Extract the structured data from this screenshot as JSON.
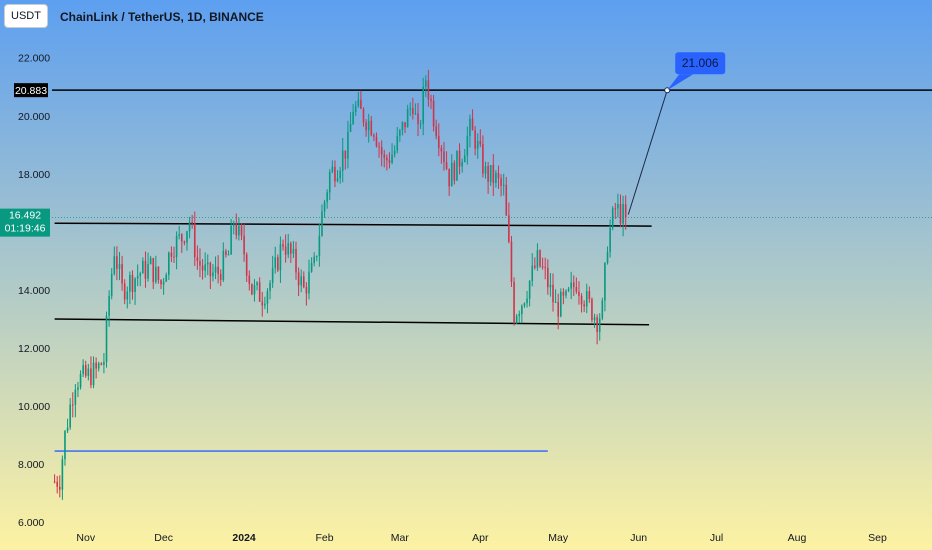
{
  "header": {
    "currency_badge": "USDT",
    "symbol_title": "ChainLink / TetherUS, 1D, BINANCE"
  },
  "colors": {
    "bg_top": "#5d9ff0",
    "bg_bottom": "#fdf2a3",
    "up_candle": "#089981",
    "down_candle": "#d0344b",
    "level_line": "#000000",
    "support_line": "#2962ff",
    "callout": "#2962ff",
    "price_tag": "#089981"
  },
  "chart_data": {
    "type": "candlestick",
    "title": "ChainLink / TetherUS, 1D, BINANCE",
    "y_ticks": [
      "22.000",
      "20.000",
      "18.000",
      "14.000",
      "12.000",
      "10.000",
      "8.000",
      "6.000"
    ],
    "ylim": [
      5.8,
      23.3
    ],
    "x_ticks": [
      {
        "label": "Nov",
        "date": "2023-11-01",
        "bold": false
      },
      {
        "label": "Dec",
        "date": "2023-12-01",
        "bold": false
      },
      {
        "label": "2024",
        "date": "2024-01-01",
        "bold": true
      },
      {
        "label": "Feb",
        "date": "2024-02-01",
        "bold": false
      },
      {
        "label": "Mar",
        "date": "2024-03-01",
        "bold": false
      },
      {
        "label": "Apr",
        "date": "2024-04-01",
        "bold": false
      },
      {
        "label": "May",
        "date": "2024-05-01",
        "bold": false
      },
      {
        "label": "Jun",
        "date": "2024-06-01",
        "bold": false
      },
      {
        "label": "Jul",
        "date": "2024-07-01",
        "bold": false
      },
      {
        "label": "Aug",
        "date": "2024-08-01",
        "bold": false
      },
      {
        "label": "Sep",
        "date": "2024-09-01",
        "bold": false
      }
    ],
    "xlim": [
      "2023-10-19",
      "2024-09-22"
    ],
    "close_path": [
      [
        "2023-10-20",
        7.4
      ],
      [
        "2023-10-22",
        7.5
      ],
      [
        "2023-10-24",
        9.0
      ],
      [
        "2023-10-26",
        10.0
      ],
      [
        "2023-10-28",
        10.9
      ],
      [
        "2023-11-01",
        11.0
      ],
      [
        "2023-11-05",
        11.2
      ],
      [
        "2023-11-08",
        11.6
      ],
      [
        "2023-11-10",
        13.8
      ],
      [
        "2023-11-12",
        15.4
      ],
      [
        "2023-11-15",
        14.0
      ],
      [
        "2023-11-18",
        14.3
      ],
      [
        "2023-11-22",
        14.6
      ],
      [
        "2023-11-26",
        14.8
      ],
      [
        "2023-11-30",
        14.2
      ],
      [
        "2023-12-04",
        15.5
      ],
      [
        "2023-12-08",
        15.8
      ],
      [
        "2023-12-11",
        16.4
      ],
      [
        "2023-12-14",
        15.0
      ],
      [
        "2023-12-18",
        14.5
      ],
      [
        "2023-12-22",
        14.6
      ],
      [
        "2023-12-26",
        15.2
      ],
      [
        "2023-12-28",
        16.4
      ],
      [
        "2024-01-01",
        15.3
      ],
      [
        "2024-01-04",
        14.0
      ],
      [
        "2024-01-08",
        13.8
      ],
      [
        "2024-01-12",
        14.4
      ],
      [
        "2024-01-16",
        15.7
      ],
      [
        "2024-01-20",
        15.0
      ],
      [
        "2024-01-24",
        14.0
      ],
      [
        "2024-01-28",
        14.8
      ],
      [
        "2024-01-31",
        16.6
      ],
      [
        "2024-02-03",
        18.0
      ],
      [
        "2024-02-06",
        18.3
      ],
      [
        "2024-02-10",
        19.0
      ],
      [
        "2024-02-12",
        20.3
      ],
      [
        "2024-02-16",
        20.0
      ],
      [
        "2024-02-20",
        19.6
      ],
      [
        "2024-02-24",
        18.4
      ],
      [
        "2024-02-28",
        18.8
      ],
      [
        "2024-03-03",
        19.8
      ],
      [
        "2024-03-06",
        20.5
      ],
      [
        "2024-03-08",
        19.3
      ],
      [
        "2024-03-11",
        21.3
      ],
      [
        "2024-03-14",
        20.0
      ],
      [
        "2024-03-17",
        19.0
      ],
      [
        "2024-03-20",
        17.9
      ],
      [
        "2024-03-24",
        18.5
      ],
      [
        "2024-03-28",
        19.5
      ],
      [
        "2024-03-30",
        19.2
      ],
      [
        "2024-04-03",
        18.0
      ],
      [
        "2024-04-07",
        17.8
      ],
      [
        "2024-04-10",
        17.4
      ],
      [
        "2024-04-12",
        15.4
      ],
      [
        "2024-04-14",
        13.2
      ],
      [
        "2024-04-17",
        13.6
      ],
      [
        "2024-04-20",
        14.3
      ],
      [
        "2024-04-23",
        15.0
      ],
      [
        "2024-04-26",
        14.5
      ],
      [
        "2024-04-30",
        13.4
      ],
      [
        "2024-05-04",
        13.6
      ],
      [
        "2024-05-08",
        14.3
      ],
      [
        "2024-05-12",
        13.6
      ],
      [
        "2024-05-16",
        13.0
      ],
      [
        "2024-05-18",
        13.3
      ],
      [
        "2024-05-20",
        15.7
      ],
      [
        "2024-05-23",
        16.8
      ],
      [
        "2024-05-27",
        16.492
      ]
    ],
    "price_tag": {
      "value": 16.492,
      "label": "16.492",
      "countdown": "01:19:46"
    },
    "level_tag": {
      "value": 20.883,
      "label": "20.883"
    },
    "horizontal_level": {
      "value": 20.883
    },
    "trendlines": [
      {
        "name": "upper-resistance",
        "from": [
          "2023-10-20",
          16.3
        ],
        "to": [
          "2024-06-06",
          16.2
        ],
        "color": "#000000"
      },
      {
        "name": "lower-support",
        "from": [
          "2023-10-20",
          13.0
        ],
        "to": [
          "2024-06-05",
          12.8
        ],
        "color": "#000000"
      },
      {
        "name": "blue-support",
        "from": [
          "2023-10-20",
          8.45
        ],
        "to": [
          "2024-04-27",
          8.45
        ],
        "color": "#2962ff"
      }
    ],
    "projection": {
      "from": [
        "2024-05-28",
        16.6
      ],
      "to": [
        "2024-06-12",
        20.88
      ]
    },
    "callout": {
      "label": "21.006",
      "anchor": [
        "2024-06-12",
        20.88
      ]
    }
  }
}
